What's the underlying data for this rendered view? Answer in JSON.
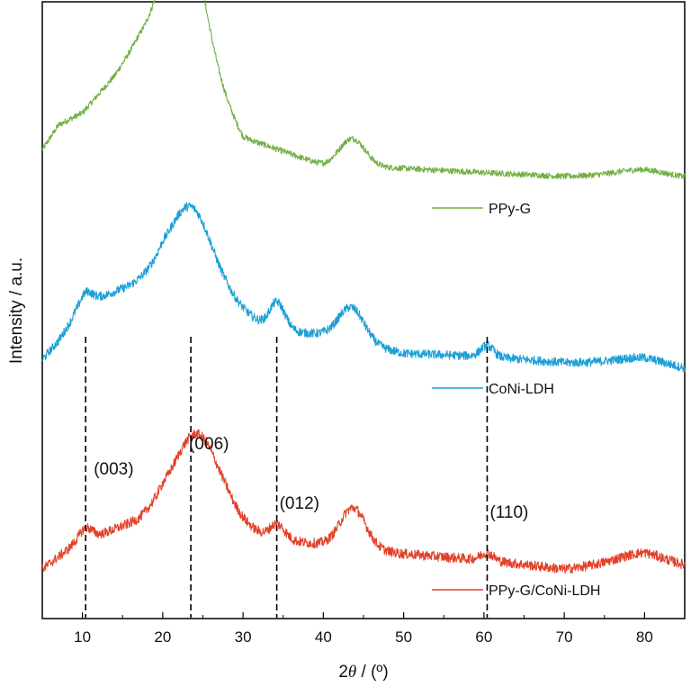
{
  "chart_data": {
    "type": "line",
    "title": "",
    "xlabel": "2θ / (º)",
    "xlabel_prefix": "2",
    "xlabel_theta": "θ",
    "xlabel_suffix": " / (º)",
    "ylabel": "Intensity / a.u.",
    "xlim": [
      5,
      85
    ],
    "ylim": [
      0,
      1
    ],
    "x_ticks": [
      10,
      20,
      30,
      40,
      50,
      60,
      70,
      80
    ],
    "x_tick_labels": [
      "10",
      "20",
      "30",
      "40",
      "50",
      "60",
      "70",
      "80"
    ],
    "y_ticks_shown": false,
    "grid": false,
    "legend_position": "right",
    "series": [
      {
        "name": "PPy-G",
        "color": "#72b043",
        "baseline": 0.72,
        "background": [
          [
            5,
            0.04
          ],
          [
            7,
            0.08
          ],
          [
            10,
            0.1
          ],
          [
            14,
            0.16
          ],
          [
            17,
            0.22
          ],
          [
            20,
            0.26
          ],
          [
            25,
            0.18
          ],
          [
            30,
            0.06
          ],
          [
            40,
            0.015
          ],
          [
            50,
            0.01
          ],
          [
            60,
            0.003
          ],
          [
            70,
            -0.003
          ],
          [
            80,
            0.0
          ],
          [
            85,
            -0.005
          ]
        ],
        "peaks": [
          {
            "center": 23.0,
            "height": 0.17,
            "width": 2.3
          },
          {
            "center": 43.6,
            "height": 0.045,
            "width": 1.6
          },
          {
            "center": 79.5,
            "height": 0.008,
            "width": 3.0
          }
        ],
        "noise": 0.006
      },
      {
        "name": "CoNi-LDH",
        "color": "#1a9fd6",
        "baseline": 0.4,
        "background": [
          [
            5,
            0.02
          ],
          [
            7,
            0.05
          ],
          [
            9,
            0.09
          ],
          [
            12,
            0.12
          ],
          [
            16,
            0.14
          ],
          [
            20,
            0.17
          ],
          [
            28,
            0.12
          ],
          [
            33,
            0.07
          ],
          [
            40,
            0.06
          ],
          [
            50,
            0.03
          ],
          [
            60,
            0.025
          ],
          [
            70,
            0.015
          ],
          [
            80,
            0.015
          ],
          [
            85,
            0.005
          ]
        ],
        "peaks": [
          {
            "center": 10.4,
            "height": 0.025,
            "width": 0.8
          },
          {
            "center": 23.6,
            "height": 0.12,
            "width": 2.5
          },
          {
            "center": 34.2,
            "height": 0.045,
            "width": 1.0
          },
          {
            "center": 43.5,
            "height": 0.055,
            "width": 1.6
          },
          {
            "center": 60.4,
            "height": 0.018,
            "width": 0.8
          },
          {
            "center": 79.5,
            "height": 0.008,
            "width": 3.0
          }
        ],
        "noise": 0.009
      },
      {
        "name": "PPy-G/CoNi-LDH",
        "color": "#e2412a",
        "baseline": 0.08,
        "background": [
          [
            5,
            0.0
          ],
          [
            7,
            0.02
          ],
          [
            9,
            0.04
          ],
          [
            13,
            0.06
          ],
          [
            17,
            0.08
          ],
          [
            20,
            0.11
          ],
          [
            28,
            0.09
          ],
          [
            33,
            0.05
          ],
          [
            40,
            0.04
          ],
          [
            50,
            0.025
          ],
          [
            60,
            0.015
          ],
          [
            70,
            0.0
          ],
          [
            80,
            0.015
          ],
          [
            85,
            0.005
          ]
        ],
        "peaks": [
          {
            "center": 10.4,
            "height": 0.02,
            "width": 0.8
          },
          {
            "center": 24.3,
            "height": 0.12,
            "width": 2.6
          },
          {
            "center": 34.2,
            "height": 0.025,
            "width": 1.0
          },
          {
            "center": 43.7,
            "height": 0.065,
            "width": 1.6
          },
          {
            "center": 60.4,
            "height": 0.012,
            "width": 0.8
          },
          {
            "center": 79.5,
            "height": 0.012,
            "width": 3.0
          }
        ],
        "noise": 0.01
      }
    ],
    "reference_lines": [
      {
        "x": 10.4,
        "label": "(003)"
      },
      {
        "x": 23.5,
        "label": "(006)"
      },
      {
        "x": 34.2,
        "label": "(012)"
      },
      {
        "x": 60.4,
        "label": "(110)"
      }
    ]
  }
}
